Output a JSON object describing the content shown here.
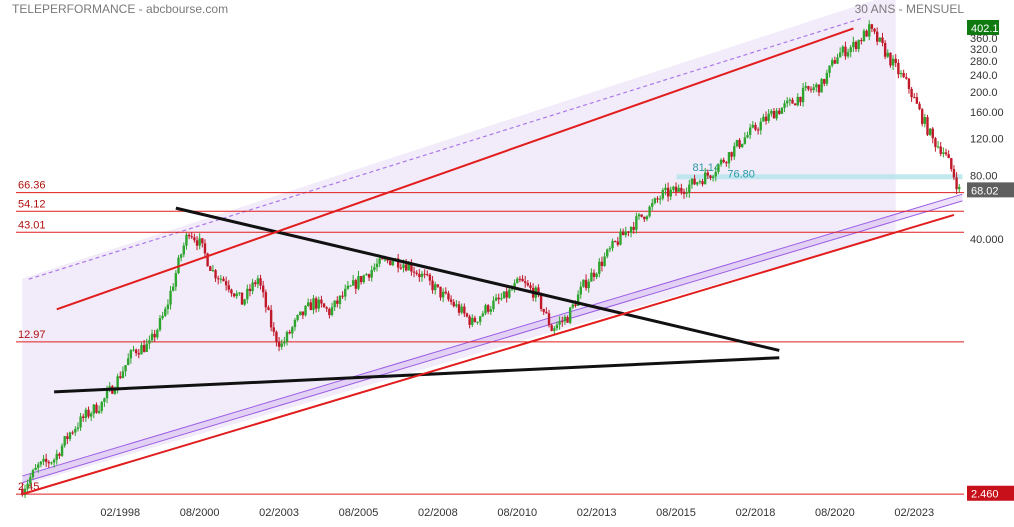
{
  "header": {
    "title": "TELEPERFORMANCE - abcbourse.com",
    "period": "30 ANS - MENSUEL"
  },
  "colors": {
    "up": "#2ea52e",
    "down": "#c0192a",
    "support_line": "#e11d1d",
    "trend_line": "#111111",
    "channel_fill": "#eee4f7",
    "channel_line": "#9b5de5",
    "zone_fill": "#b9e6ec",
    "last_label_bg": "#5f5f5f",
    "max_label_bg": "#0f7a0f",
    "min_label_bg": "#c8101a"
  },
  "chart_data": {
    "type": "candlestick",
    "scale": "log",
    "ylim": [
      2.4,
      420
    ],
    "x_ticks": [
      "02/1998",
      "08/2000",
      "02/2003",
      "08/2005",
      "02/2008",
      "08/2010",
      "02/2013",
      "08/2015",
      "02/2018",
      "08/2020",
      "02/2023"
    ],
    "y_ticks": [
      "402.1",
      "360.0",
      "320.0",
      "280.0",
      "240.0",
      "200.0",
      "160.00",
      "120.00",
      "80.00",
      "68.02",
      "40.000",
      "2.460"
    ],
    "levels": [
      {
        "label": "66.36",
        "value": 66.36
      },
      {
        "label": "54.12",
        "value": 54.12
      },
      {
        "label": "43.01",
        "value": 43.01
      },
      {
        "label": "12.97",
        "value": 12.97
      },
      {
        "label": "2.45",
        "value": 2.45
      }
    ],
    "zone": {
      "labels": [
        "81.14",
        "76.80"
      ],
      "low": 76.8,
      "high": 81.14
    },
    "last_price": 68.02,
    "max_price": 402.1,
    "min_price": 2.46,
    "trendlines": [
      {
        "name": "triangle-upper",
        "from": [
          "1999-11",
          56
        ],
        "to": [
          "2018-11",
          11.8
        ]
      },
      {
        "name": "triangle-lower",
        "from": [
          "1996-01",
          7.5
        ],
        "to": [
          "2018-11",
          10.9
        ]
      },
      {
        "name": "long-term-support",
        "from": [
          "1995-01",
          2.45
        ],
        "to": [
          "2024-05",
          52
        ]
      },
      {
        "name": "upper-channel",
        "from": [
          "1996-02",
          18.5
        ],
        "to": [
          "2021-03",
          400
        ]
      }
    ],
    "path_points": [
      [
        "1995-01",
        2.6
      ],
      [
        "1995-07",
        3.3
      ],
      [
        "1996-01",
        3.6
      ],
      [
        "1996-07",
        4.8
      ],
      [
        "1997-01",
        5.8
      ],
      [
        "1997-07",
        6.6
      ],
      [
        "1998-01",
        8.6
      ],
      [
        "1998-07",
        11.8
      ],
      [
        "1999-01",
        12.5
      ],
      [
        "1999-07",
        18
      ],
      [
        "2000-01",
        34
      ],
      [
        "2000-04",
        44
      ],
      [
        "2000-08",
        38
      ],
      [
        "2001-01",
        28
      ],
      [
        "2001-06",
        25
      ],
      [
        "2001-12",
        20
      ],
      [
        "2002-06",
        26
      ],
      [
        "2002-12",
        14
      ],
      [
        "2003-03",
        12.5
      ],
      [
        "2003-09",
        16.5
      ],
      [
        "2004-03",
        20
      ],
      [
        "2004-09",
        18
      ],
      [
        "2005-03",
        22
      ],
      [
        "2005-09",
        26
      ],
      [
        "2006-03",
        30
      ],
      [
        "2006-09",
        32
      ],
      [
        "2007-03",
        30
      ],
      [
        "2007-09",
        26
      ],
      [
        "2008-03",
        22
      ],
      [
        "2008-09",
        19
      ],
      [
        "2009-03",
        16
      ],
      [
        "2009-09",
        19
      ],
      [
        "2010-03",
        21
      ],
      [
        "2010-09",
        25
      ],
      [
        "2011-03",
        22
      ],
      [
        "2011-09",
        15
      ],
      [
        "2012-03",
        17
      ],
      [
        "2012-09",
        24
      ],
      [
        "2013-03",
        30
      ],
      [
        "2013-09",
        38
      ],
      [
        "2014-03",
        46
      ],
      [
        "2014-09",
        54
      ],
      [
        "2015-03",
        65
      ],
      [
        "2015-09",
        68
      ],
      [
        "2016-03",
        74
      ],
      [
        "2016-09",
        82
      ],
      [
        "2017-03",
        98
      ],
      [
        "2017-09",
        118
      ],
      [
        "2018-03",
        138
      ],
      [
        "2018-09",
        160
      ],
      [
        "2019-03",
        175
      ],
      [
        "2019-09",
        200
      ],
      [
        "2020-03",
        215
      ],
      [
        "2020-09",
        300
      ],
      [
        "2021-03",
        330
      ],
      [
        "2021-09",
        395
      ],
      [
        "2022-01",
        340
      ],
      [
        "2022-06",
        270
      ],
      [
        "2022-12",
        210
      ],
      [
        "2023-04",
        160
      ],
      [
        "2023-09",
        118
      ],
      [
        "2024-01",
        105
      ],
      [
        "2024-05",
        80
      ],
      [
        "2024-07",
        68.02
      ]
    ]
  }
}
